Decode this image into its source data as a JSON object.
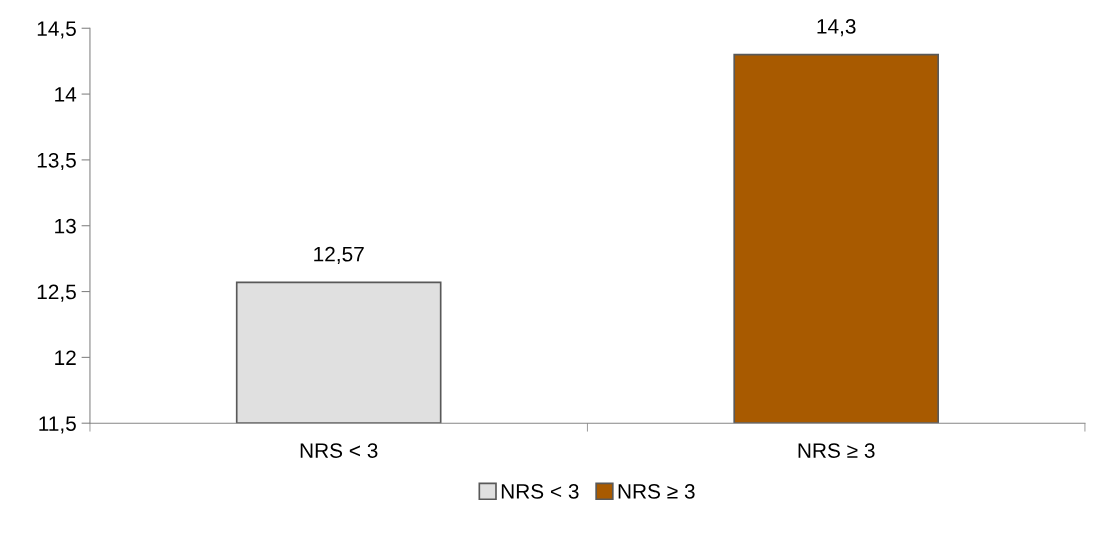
{
  "chart_data": {
    "type": "bar",
    "categories": [
      "NRS < 3",
      "NRS ≥ 3"
    ],
    "series": [
      {
        "name": "NRS < 3",
        "color": "#e0e0e0",
        "values": [
          12.57,
          null
        ],
        "value_labels": [
          "12,57",
          null
        ]
      },
      {
        "name": "NRS ≥ 3",
        "color": "#a85a00",
        "values": [
          null,
          14.3
        ],
        "value_labels": [
          null,
          "14,3"
        ]
      }
    ],
    "ylim": [
      11.5,
      14.5
    ],
    "yticks": [
      {
        "value": 11.5,
        "label": "11,5"
      },
      12,
      {
        "value": 12.5,
        "label": "12,5"
      },
      13,
      {
        "value": 13.5,
        "label": "13,5"
      },
      14,
      {
        "value": 14.5,
        "label": "14,5"
      }
    ],
    "legend": "bottom"
  }
}
